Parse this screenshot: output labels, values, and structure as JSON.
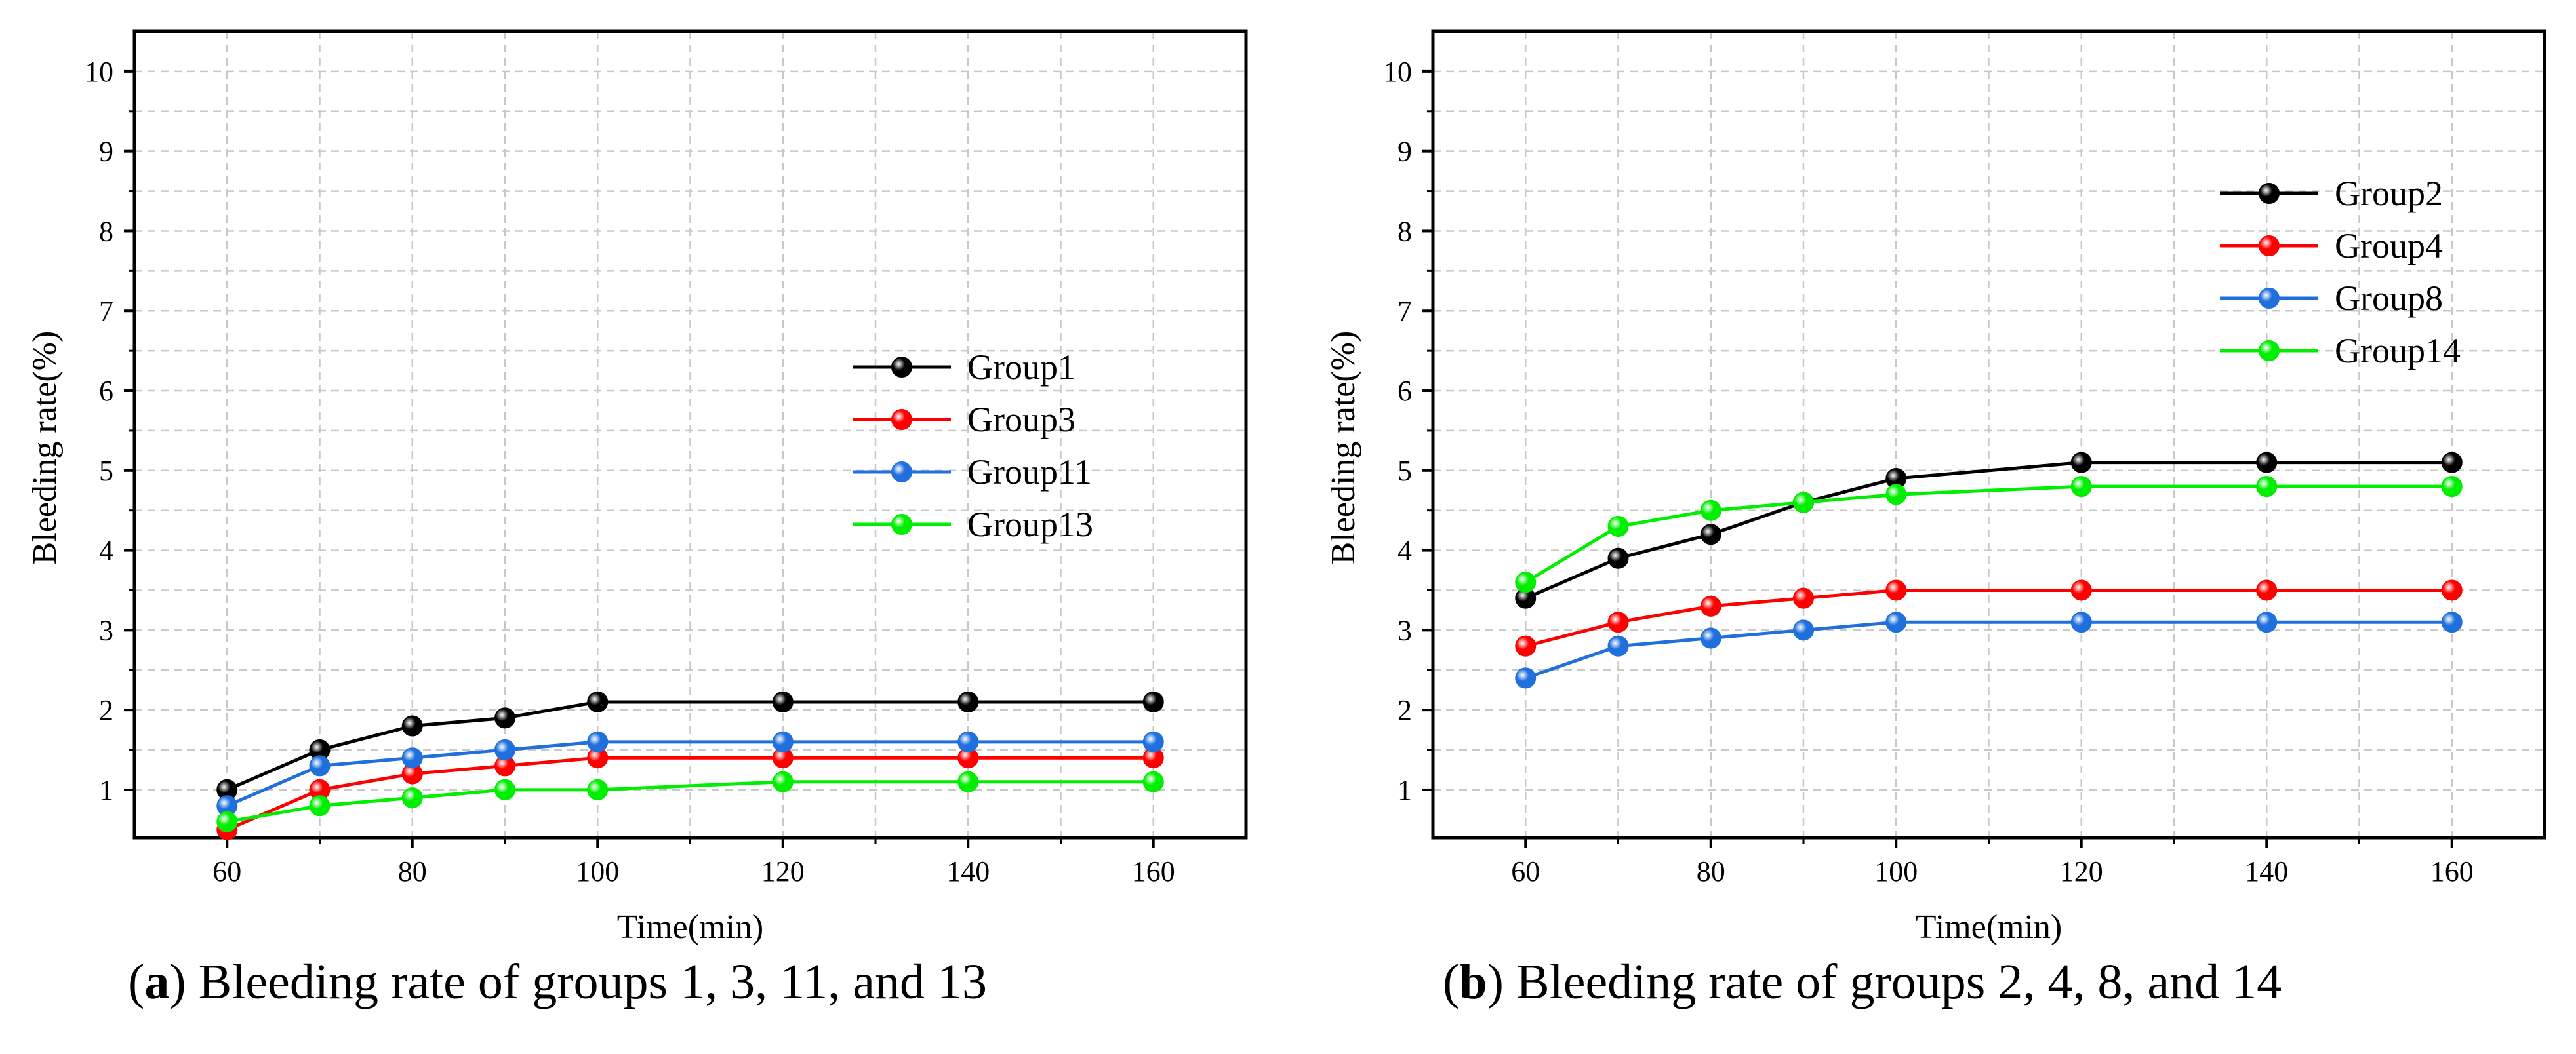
{
  "chart_data": [
    {
      "type": "line",
      "panel_letter": "a",
      "caption_text": " Bleeding rate of groups 1, 3, 11, and 13",
      "xlabel": "Time(min)",
      "ylabel": "Bleeding rate(%)",
      "xlim": [
        50,
        170
      ],
      "ylim": [
        0.4,
        10.5
      ],
      "x_ticks": [
        60,
        80,
        100,
        120,
        140,
        160
      ],
      "y_ticks": [
        1,
        2,
        3,
        4,
        5,
        6,
        7,
        8,
        9,
        10
      ],
      "grid": true,
      "legend_position": "center-right",
      "x": [
        60,
        70,
        80,
        90,
        100,
        120,
        140,
        160
      ],
      "series": [
        {
          "name": "Group1",
          "color": "#000000",
          "values": [
            1.0,
            1.5,
            1.8,
            1.9,
            2.1,
            2.1,
            2.1,
            2.1
          ]
        },
        {
          "name": "Group3",
          "color": "#ff0000",
          "values": [
            0.5,
            1.0,
            1.2,
            1.3,
            1.4,
            1.4,
            1.4,
            1.4
          ]
        },
        {
          "name": "Group11",
          "color": "#1f6fdc",
          "values": [
            0.8,
            1.3,
            1.4,
            1.5,
            1.6,
            1.6,
            1.6,
            1.6
          ]
        },
        {
          "name": "Group13",
          "color": "#00ee00",
          "values": [
            0.6,
            0.8,
            0.9,
            1.0,
            1.0,
            1.1,
            1.1,
            1.1
          ]
        }
      ]
    },
    {
      "type": "line",
      "panel_letter": "b",
      "caption_text": " Bleeding rate of groups 2, 4, 8, and 14",
      "xlabel": "Time(min)",
      "ylabel": "Bleeding rate(%)",
      "xlim": [
        50,
        170
      ],
      "ylim": [
        0.4,
        10.5
      ],
      "x_ticks": [
        60,
        80,
        100,
        120,
        140,
        160
      ],
      "y_ticks": [
        1,
        2,
        3,
        4,
        5,
        6,
        7,
        8,
        9,
        10
      ],
      "grid": true,
      "legend_position": "top-right",
      "x": [
        60,
        70,
        80,
        90,
        100,
        120,
        140,
        160
      ],
      "series": [
        {
          "name": "Group2",
          "color": "#000000",
          "values": [
            3.4,
            3.9,
            4.2,
            4.6,
            4.9,
            5.1,
            5.1,
            5.1
          ]
        },
        {
          "name": "Group4",
          "color": "#ff0000",
          "values": [
            2.8,
            3.1,
            3.3,
            3.4,
            3.5,
            3.5,
            3.5,
            3.5
          ]
        },
        {
          "name": "Group8",
          "color": "#1f6fdc",
          "values": [
            2.4,
            2.8,
            2.9,
            3.0,
            3.1,
            3.1,
            3.1,
            3.1
          ]
        },
        {
          "name": "Group14",
          "color": "#00ee00",
          "values": [
            3.6,
            4.3,
            4.5,
            4.6,
            4.7,
            4.8,
            4.8,
            4.8
          ]
        }
      ]
    }
  ]
}
